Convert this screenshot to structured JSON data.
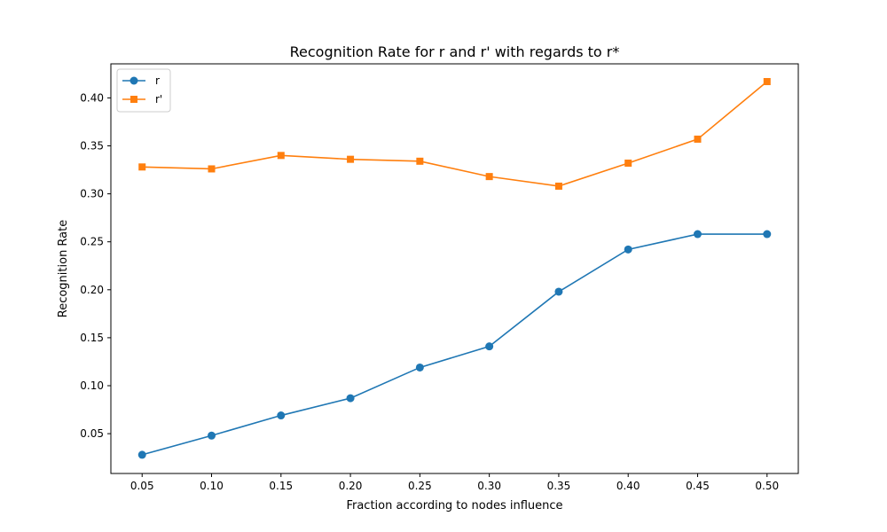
{
  "chart_data": {
    "type": "line",
    "title": "Recognition Rate for r and r' with regards to r*",
    "xlabel": "Fraction according to nodes influence",
    "ylabel": "Recognition Rate",
    "x": [
      0.05,
      0.1,
      0.15,
      0.2,
      0.25,
      0.3,
      0.35,
      0.4,
      0.45,
      0.5
    ],
    "x_tick_labels": [
      "0.05",
      "0.10",
      "0.15",
      "0.20",
      "0.25",
      "0.30",
      "0.35",
      "0.40",
      "0.45",
      "0.50"
    ],
    "xlim": [
      0.0275,
      0.5225
    ],
    "ylim": [
      0.0085,
      0.4355
    ],
    "y_ticks": [
      0.05,
      0.1,
      0.15,
      0.2,
      0.25,
      0.3,
      0.35,
      0.4
    ],
    "y_tick_labels": [
      "0.05",
      "0.10",
      "0.15",
      "0.20",
      "0.25",
      "0.30",
      "0.35",
      "0.40"
    ],
    "grid": false,
    "legend_position": "top-left",
    "series": [
      {
        "name": "r",
        "color": "#1f77b4",
        "marker": "circle",
        "values": [
          0.028,
          0.048,
          0.069,
          0.087,
          0.119,
          0.141,
          0.198,
          0.242,
          0.258,
          0.258
        ]
      },
      {
        "name": "r'",
        "color": "#ff7f0e",
        "marker": "square",
        "values": [
          0.328,
          0.326,
          0.34,
          0.336,
          0.334,
          0.318,
          0.308,
          0.332,
          0.357,
          0.417
        ]
      }
    ]
  }
}
